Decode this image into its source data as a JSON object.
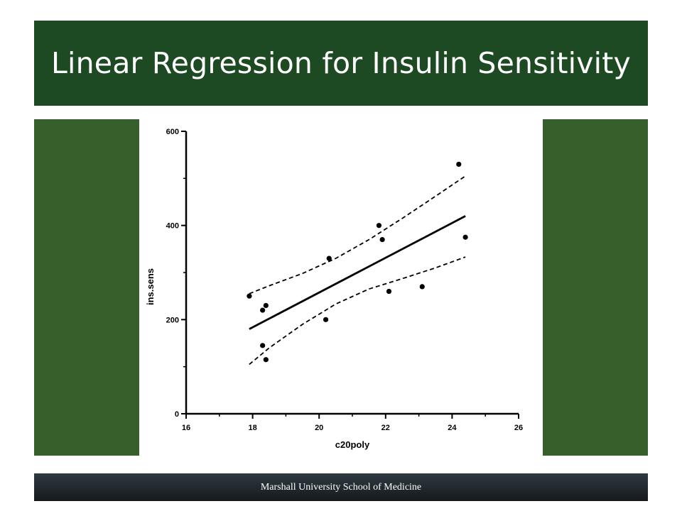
{
  "slide": {
    "title": "Linear Regression for Insulin Sensitivity",
    "footer": "Marshall University School of Medicine",
    "colors": {
      "title_bar": "#1d4a22",
      "content_band": "#365f2c",
      "footer_bar": "#1a2226",
      "text_light": "#ffffff"
    }
  },
  "chart_data": {
    "type": "scatter",
    "title": "",
    "xlabel": "c20poly",
    "ylabel": "ins.sens",
    "xlim": [
      16,
      26
    ],
    "ylim": [
      0,
      600
    ],
    "xticks": [
      16,
      18,
      20,
      22,
      24,
      26
    ],
    "yticks": [
      0,
      200,
      400,
      600
    ],
    "grid": false,
    "legend": "none",
    "points": [
      {
        "x": 17.9,
        "y": 250
      },
      {
        "x": 18.3,
        "y": 220
      },
      {
        "x": 18.4,
        "y": 230
      },
      {
        "x": 18.3,
        "y": 145
      },
      {
        "x": 18.4,
        "y": 115
      },
      {
        "x": 20.2,
        "y": 200
      },
      {
        "x": 20.3,
        "y": 330
      },
      {
        "x": 21.8,
        "y": 400
      },
      {
        "x": 21.9,
        "y": 370
      },
      {
        "x": 22.1,
        "y": 260
      },
      {
        "x": 23.1,
        "y": 270
      },
      {
        "x": 24.2,
        "y": 530
      },
      {
        "x": 24.4,
        "y": 375
      }
    ],
    "regression_line": {
      "x": [
        17.9,
        24.4
      ],
      "y": [
        180,
        420
      ]
    },
    "confidence_band": {
      "upper": {
        "x": [
          17.9,
          18.5,
          19.5,
          20.5,
          21.5,
          22.5,
          23.5,
          24.4
        ],
        "y": [
          255,
          272,
          298,
          330,
          370,
          415,
          462,
          505
        ]
      },
      "lower": {
        "x": [
          17.9,
          18.5,
          19.5,
          20.5,
          21.5,
          22.5,
          23.5,
          24.4
        ],
        "y": [
          105,
          140,
          190,
          233,
          265,
          287,
          310,
          333
        ]
      }
    }
  }
}
